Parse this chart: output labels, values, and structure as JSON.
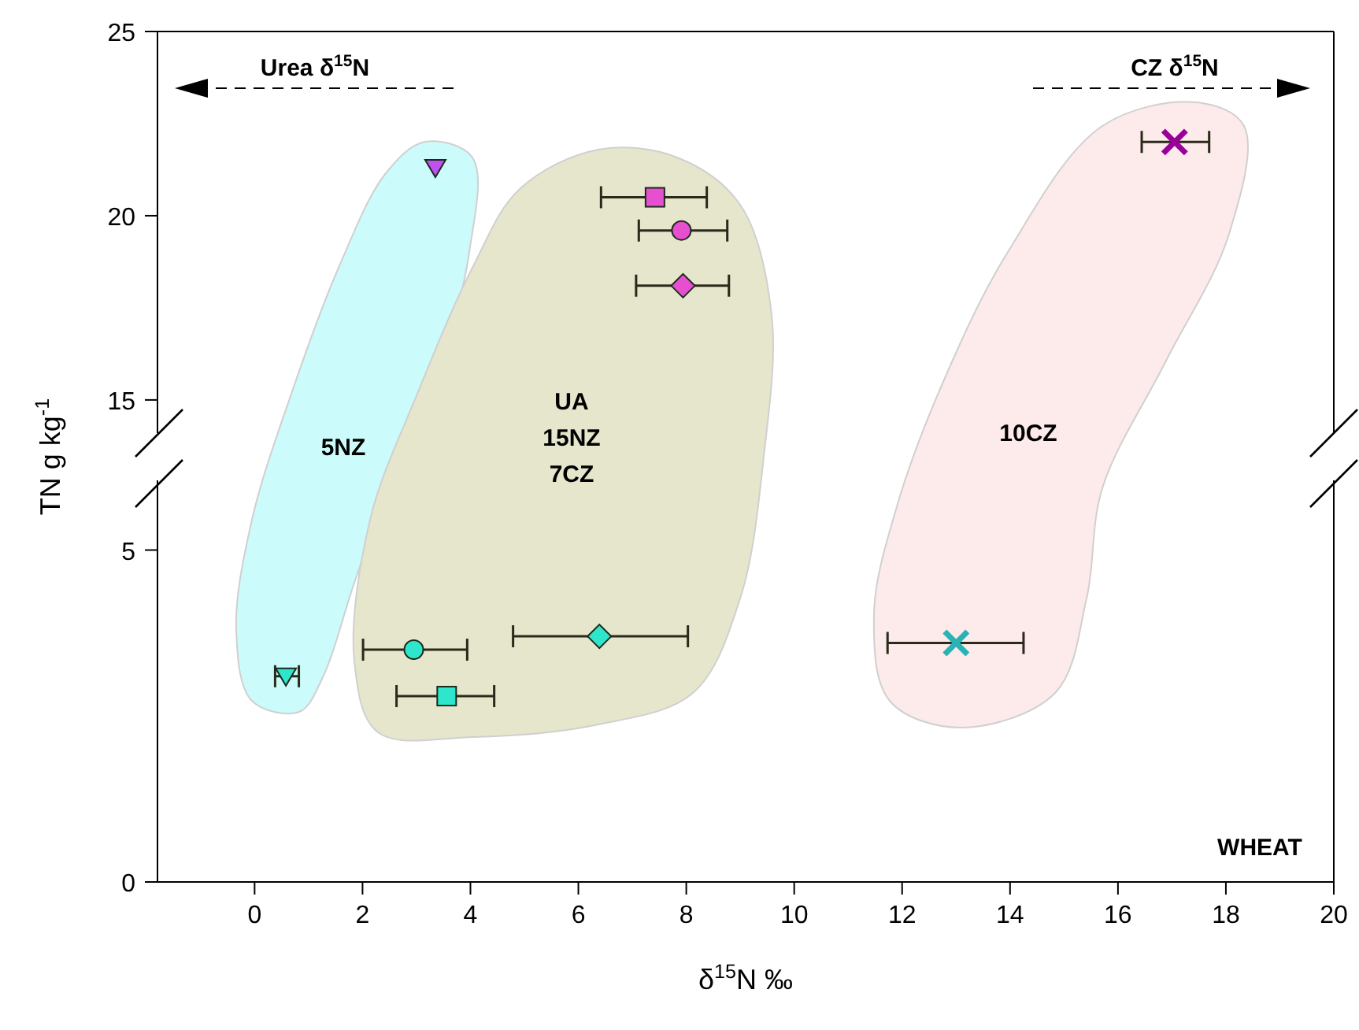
{
  "chart_data": [
    {
      "type": "scatter",
      "xlim": [
        -1.8,
        20
      ],
      "ylim": [
        14.1,
        25
      ],
      "yticks": [
        15,
        20,
        25
      ],
      "tick_labels": "y",
      "ylabel": "TN g kg$^{-1}$",
      "annotations": [
        "Urea δ$^{15}$N",
        "CZ δ$^{15}$N"
      ],
      "series": [
        {
          "color": "#c050f0",
          "marker": "triangle",
          "x": [
            3.35
          ],
          "values": [
            21.3
          ]
        },
        {
          "color": "#e64fd0",
          "marker": "square",
          "x": [
            7.42
          ],
          "values": [
            20.5
          ],
          "xerrors": [
            [
              6.42,
              8.38
            ]
          ]
        },
        {
          "color": "#e64fd0",
          "marker": "circle",
          "x": [
            7.91
          ],
          "values": [
            19.6
          ],
          "xerrors": [
            [
              7.12,
              8.76
            ]
          ]
        },
        {
          "color": "#e64fd0",
          "marker": "diamond",
          "x": [
            7.94
          ],
          "values": [
            18.1
          ],
          "xerrors": [
            [
              7.07,
              8.79
            ]
          ]
        },
        {
          "color": "#990099",
          "marker": "cross",
          "x": [
            17.05
          ],
          "values": [
            22.0
          ],
          "xerrors": [
            [
              16.44,
              17.69
            ]
          ]
        }
      ]
    },
    {
      "type": "scatter",
      "xlim": [
        -1.8,
        20
      ],
      "ylim": [
        0,
        6.05
      ],
      "xticks": [
        0,
        2,
        4,
        6,
        8,
        10,
        12,
        14,
        16,
        18,
        20
      ],
      "yticks": [
        0,
        5
      ],
      "xlabel": "δ$^{15}$N ‰",
      "annotations": [
        "5NZ",
        "UA",
        "15NZ",
        "7CZ",
        "10CZ",
        "WHEAT"
      ],
      "series": [
        {
          "color": "#2ee6cc",
          "marker": "triangle",
          "x": [
            0.58
          ],
          "values": [
            3.1
          ],
          "xerrors": [
            [
              0.38,
              0.82
            ]
          ]
        },
        {
          "color": "#2ee6cc",
          "marker": "circle",
          "x": [
            2.95
          ],
          "values": [
            3.5
          ],
          "xerrors": [
            [
              2.01,
              3.94
            ]
          ]
        },
        {
          "color": "#2ee6cc",
          "marker": "square",
          "x": [
            3.56
          ],
          "values": [
            2.8
          ],
          "xerrors": [
            [
              2.63,
              4.44
            ]
          ]
        },
        {
          "color": "#2ee6cc",
          "marker": "diamond",
          "x": [
            6.39
          ],
          "values": [
            3.7
          ],
          "xerrors": [
            [
              4.79,
              8.03
            ]
          ]
        },
        {
          "color": "#29b3b3",
          "marker": "cross",
          "x": [
            13.0
          ],
          "values": [
            3.6
          ],
          "xerrors": [
            [
              11.73,
              14.25
            ]
          ]
        }
      ]
    }
  ]
}
